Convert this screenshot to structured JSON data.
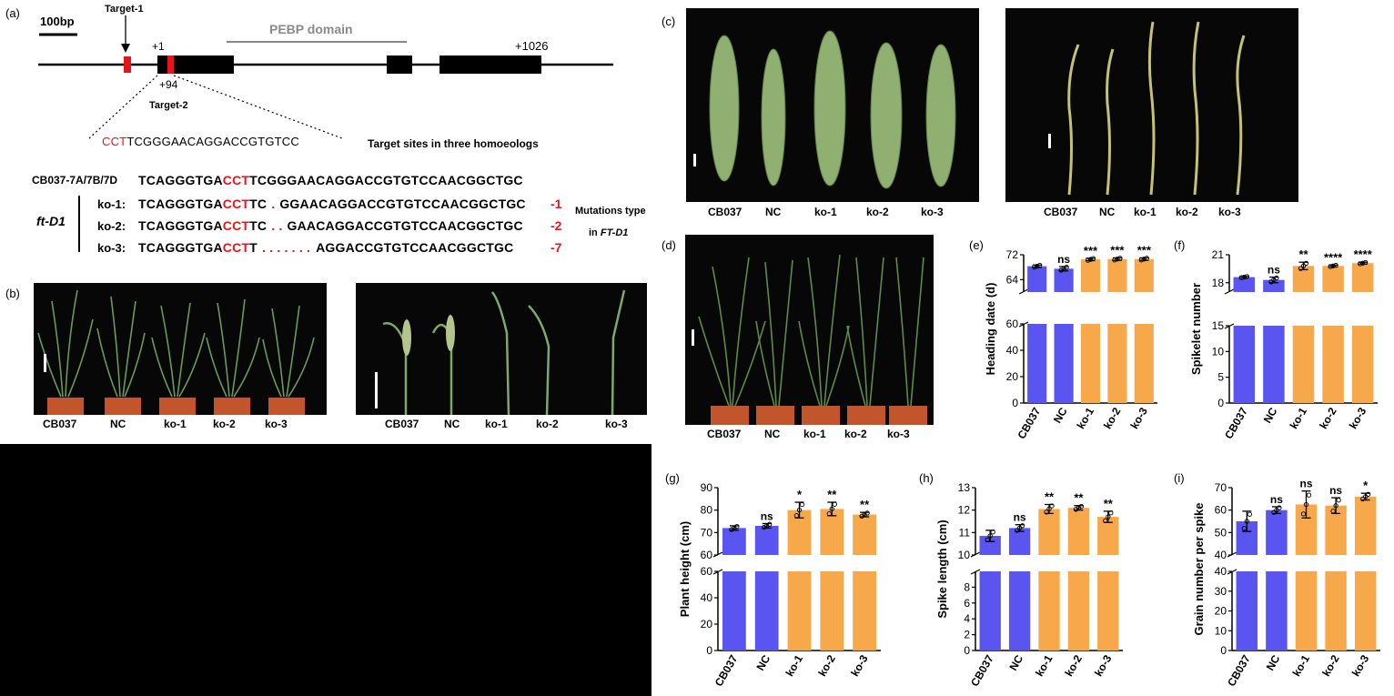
{
  "panels": {
    "a": "(a)",
    "b": "(b)",
    "c": "(c)",
    "d": "(d)",
    "e": "(e)",
    "f": "(f)",
    "g": "(g)",
    "h": "(h)",
    "i": "(i)"
  },
  "gene_model": {
    "scale_label": "100bp",
    "target1": "Target-1",
    "target2": "Target-2",
    "plus1": "+1",
    "plus94": "+94",
    "plus1026": "+1026",
    "domain": "PEBP domain",
    "target_seq_red": "CCT",
    "target_seq_rest": "TCGGGAACAGGACCGTGTCC",
    "target_sites_note": "Target sites in three homoeologs"
  },
  "alignment": {
    "reference_name": "CB037-7A/7B/7D",
    "reference": {
      "pre": "TCAGGGTGA",
      "red": "CCT",
      "post": "TCGGGAACAGGACCGTGTCCAACGGCTGC"
    },
    "group_label": "ft-D1",
    "rows": [
      {
        "name": "ko-1:",
        "pre": "TCAGGGTGA",
        "red": "CCT",
        "mid": "TC",
        "gap": ".",
        "post": "GGAACAGGACCGTGTCCAACGGCTGC",
        "type": "-1"
      },
      {
        "name": "ko-2:",
        "pre": "TCAGGGTGA",
        "red": "CCT",
        "mid": "TC",
        "gap": ". .",
        "post": "GAACAGGACCGTGTCCAACGGCTGC",
        "type": "-2"
      },
      {
        "name": "ko-3:",
        "pre": "TCAGGGTGA",
        "red": "CCT",
        "mid": "T",
        "gap": ". . . . . . .",
        "post": "AGGACCGTGTCCAACGGCTGC",
        "type": "-7"
      }
    ],
    "mut_note_line1": "Mutations type",
    "mut_note_line2_pre": "in ",
    "mut_note_line2_italic": "FT-D1"
  },
  "photo_labels": {
    "b_left": [
      "CB037",
      "NC",
      "ko-1",
      "ko-2",
      "ko-3"
    ],
    "b_right": [
      "CB037",
      "NC",
      "ko-1",
      "ko-2",
      "ko-3"
    ],
    "c_left": [
      "CB037",
      "NC",
      "ko-1",
      "ko-2",
      "ko-3"
    ],
    "c_right": [
      "CB037",
      "NC",
      "ko-1",
      "ko-2",
      "ko-3"
    ],
    "d": [
      "CB037",
      "NC",
      "ko-1",
      "ko-2",
      "ko-3"
    ]
  },
  "colors": {
    "control": "#5a55f0",
    "knockout": "#f7a84a",
    "red": "#e8141b"
  },
  "chart_data": [
    {
      "panel": "(e)",
      "type": "bar",
      "categories": [
        "CB037",
        "NC",
        "ko-1",
        "ko-2",
        "ko-3"
      ],
      "values": [
        68.3,
        67.5,
        70.5,
        70.6,
        70.6
      ],
      "errors": [
        0.4,
        0.7,
        0.4,
        0.4,
        0.4
      ],
      "significance": [
        "",
        "ns",
        "***",
        "***",
        "***"
      ],
      "ylabel": "Heading date (d)",
      "broken_axis": {
        "lower": [
          0,
          60
        ],
        "upper": [
          60,
          72
        ]
      },
      "lower_ticks": [
        0,
        20,
        40,
        60
      ],
      "upper_ticks": [
        64,
        72
      ]
    },
    {
      "panel": "(f)",
      "type": "bar",
      "categories": [
        "CB037",
        "NC",
        "ko-1",
        "ko-2",
        "ko-3"
      ],
      "values": [
        18.6,
        18.3,
        19.8,
        19.8,
        20.1
      ],
      "errors": [
        0.1,
        0.3,
        0.4,
        0.1,
        0.1
      ],
      "significance": [
        "",
        "ns",
        "**",
        "****",
        "****"
      ],
      "ylabel": "Spikelet number",
      "broken_axis": {
        "lower": [
          0,
          15
        ],
        "upper": [
          17,
          21
        ]
      },
      "lower_ticks": [
        0,
        5,
        10,
        15
      ],
      "upper_ticks": [
        18,
        21
      ]
    },
    {
      "panel": "(g)",
      "type": "bar",
      "categories": [
        "CB037",
        "NC",
        "ko-1",
        "ko-2",
        "ko-3"
      ],
      "values": [
        72,
        73,
        80,
        80.5,
        78
      ],
      "errors": [
        1,
        1,
        3.5,
        3,
        1
      ],
      "significance": [
        "",
        "ns",
        "*",
        "**",
        "**"
      ],
      "ylabel": "Plant height (cm)",
      "broken_axis": {
        "lower": [
          0,
          60
        ],
        "upper": [
          60,
          90
        ]
      },
      "lower_ticks": [
        0,
        20,
        40,
        60
      ],
      "upper_ticks": [
        60,
        70,
        80,
        90
      ]
    },
    {
      "panel": "(h)",
      "type": "bar",
      "categories": [
        "CB037",
        "NC",
        "ko-1",
        "ko-2",
        "ko-3"
      ],
      "values": [
        10.85,
        11.2,
        12.05,
        12.1,
        11.7
      ],
      "errors": [
        0.25,
        0.15,
        0.2,
        0.1,
        0.25
      ],
      "significance": [
        "",
        "ns",
        "**",
        "**",
        "**"
      ],
      "ylabel": "Spike length (cm)",
      "broken_axis": {
        "lower": [
          0,
          10
        ],
        "upper": [
          10,
          13
        ]
      },
      "lower_ticks": [
        0,
        2,
        4,
        6,
        8
      ],
      "upper_ticks": [
        10,
        11,
        12,
        13
      ]
    },
    {
      "panel": "(i)",
      "type": "bar",
      "categories": [
        "CB037",
        "NC",
        "ko-1",
        "ko-2",
        "ko-3"
      ],
      "values": [
        55,
        60,
        62.5,
        62,
        66
      ],
      "errors": [
        4.5,
        1.5,
        6,
        3.5,
        1.5
      ],
      "significance": [
        "",
        "ns",
        "ns",
        "ns",
        "*"
      ],
      "ylabel": "Grain number per spike",
      "broken_axis": {
        "lower": [
          0,
          40
        ],
        "upper": [
          40,
          70
        ]
      },
      "lower_ticks": [
        0,
        10,
        20,
        30,
        40
      ],
      "upper_ticks": [
        40,
        50,
        60,
        70
      ]
    }
  ]
}
